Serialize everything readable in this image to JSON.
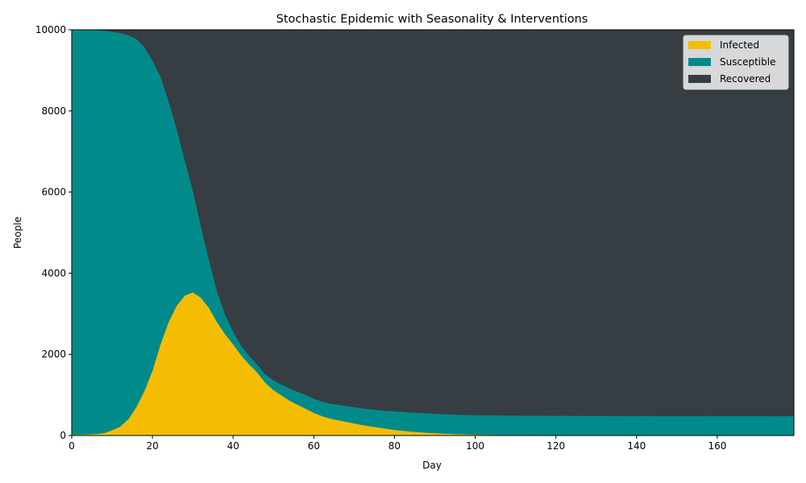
{
  "chart_data": {
    "type": "area",
    "stacked": true,
    "title": "Stochastic Epidemic with Seasonality & Interventions",
    "xlabel": "Day",
    "ylabel": "People",
    "xlim": [
      0,
      179
    ],
    "ylim": [
      0,
      10000
    ],
    "xticks": [
      0,
      20,
      40,
      60,
      80,
      100,
      120,
      140,
      160
    ],
    "yticks": [
      0,
      2000,
      4000,
      6000,
      8000,
      10000
    ],
    "grid": false,
    "legend": "top-right",
    "total": 10000,
    "x": [
      0,
      2,
      4,
      6,
      8,
      10,
      12,
      14,
      16,
      18,
      20,
      22,
      24,
      26,
      28,
      30,
      32,
      34,
      36,
      38,
      40,
      42,
      44,
      46,
      48,
      50,
      52,
      54,
      56,
      58,
      60,
      62,
      64,
      66,
      68,
      70,
      72,
      74,
      76,
      78,
      80,
      84,
      88,
      92,
      96,
      100,
      104,
      108,
      112,
      116,
      120,
      130,
      140,
      150,
      160,
      170,
      179
    ],
    "series": [
      {
        "name": "Infected",
        "color": "#f5bd02",
        "values": [
          20,
          25,
          30,
          40,
          60,
          130,
          220,
          400,
          700,
          1100,
          1600,
          2250,
          2800,
          3200,
          3450,
          3530,
          3400,
          3150,
          2800,
          2500,
          2250,
          1980,
          1750,
          1550,
          1300,
          1120,
          990,
          860,
          760,
          660,
          560,
          480,
          420,
          380,
          340,
          300,
          260,
          230,
          200,
          170,
          140,
          100,
          70,
          50,
          35,
          25,
          20,
          15,
          12,
          10,
          8,
          5,
          3,
          2,
          1,
          1,
          0
        ]
      },
      {
        "name": "Susceptible",
        "color": "#008b8a",
        "values": [
          9980,
          9975,
          9965,
          9950,
          9920,
          9830,
          9700,
          9470,
          9080,
          8480,
          7650,
          6600,
          5450,
          4370,
          3350,
          2520,
          1780,
          1190,
          760,
          490,
          320,
          240,
          210,
          200,
          210,
          240,
          270,
          300,
          320,
          340,
          350,
          360,
          370,
          380,
          390,
          400,
          410,
          420,
          430,
          440,
          460,
          470,
          480,
          480,
          480,
          480,
          480,
          480,
          480,
          480,
          480,
          480,
          480,
          480,
          480,
          480,
          480
        ]
      },
      {
        "name": "Recovered",
        "color": "#363d43",
        "values": [
          0,
          0,
          5,
          10,
          20,
          40,
          80,
          130,
          220,
          420,
          750,
          1150,
          1750,
          2430,
          3200,
          3950,
          4820,
          5660,
          6440,
          7010,
          7430,
          7780,
          8040,
          8250,
          8490,
          8640,
          8740,
          8840,
          8920,
          9000,
          9090,
          9160,
          9210,
          9240,
          9270,
          9300,
          9330,
          9350,
          9370,
          9390,
          9400,
          9430,
          9450,
          9470,
          9485,
          9495,
          9500,
          9505,
          9508,
          9510,
          9512,
          9515,
          9517,
          9518,
          9519,
          9519,
          9520
        ]
      }
    ]
  }
}
